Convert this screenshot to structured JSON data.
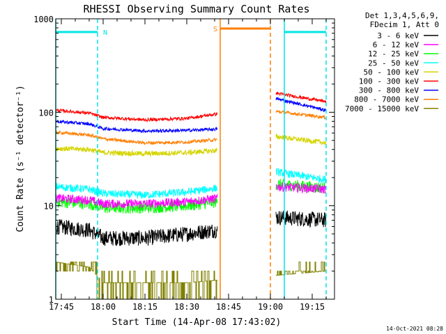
{
  "chart_data": {
    "type": "line",
    "title": "RHESSI Observing Summary Count Rates",
    "xlabel": "Start Time (14-Apr-08 17:43:02)",
    "ylabel": "Count Rate (s⁻¹ detector⁻¹)",
    "y_scale": "log",
    "ylim": [
      1,
      1000
    ],
    "xlim": [
      "17:43",
      "19:23"
    ],
    "x_ticks": [
      "17:45",
      "18:00",
      "18:15",
      "18:30",
      "18:45",
      "19:00",
      "19:15"
    ],
    "y_ticks": [
      "1",
      "10",
      "100",
      "1000"
    ],
    "legend_header": [
      "Det 1,3,4,5,6,9,",
      "FDecim 1, Att 0"
    ],
    "legend_position": "right",
    "timestamp": "14-Oct-2021 08:28",
    "flags": [
      {
        "label": "N",
        "color": "#00e5e5",
        "start": "17:43",
        "end": "17:58"
      },
      {
        "label": "",
        "color": "#00e5e5",
        "start": "19:05",
        "end": "19:20"
      },
      {
        "label": "S",
        "color": "#ff7f00",
        "start": "18:42",
        "end": "19:00"
      }
    ],
    "markers": [
      {
        "time": "17:43",
        "color": "#00e5e5",
        "style": "solid"
      },
      {
        "time": "17:58",
        "color": "#00e5e5",
        "style": "dashed"
      },
      {
        "time": "18:42",
        "color": "#ff7f00",
        "style": "solid"
      },
      {
        "time": "19:00",
        "color": "#ff7f00",
        "style": "dashed"
      },
      {
        "time": "19:05",
        "color": "#00e5e5",
        "style": "solid"
      },
      {
        "time": "19:20",
        "color": "#00e5e5",
        "style": "dashed"
      }
    ],
    "segments": [
      {
        "start": "17:43",
        "end": "18:41"
      },
      {
        "start": "19:02",
        "end": "19:20"
      }
    ],
    "series": [
      {
        "name": "3 - 6 keV",
        "color": "#000000",
        "noise": 0.12,
        "points": [
          [
            "17:43",
            6
          ],
          [
            "17:55",
            5.5
          ],
          [
            "18:00",
            4.5
          ],
          [
            "18:15",
            4.5
          ],
          [
            "18:30",
            5
          ],
          [
            "18:41",
            5.5
          ],
          [
            "19:02",
            7.5
          ],
          [
            "19:20",
            7
          ]
        ]
      },
      {
        "name": "6 - 12 keV",
        "color": "#ff00ff",
        "noise": 0.07,
        "points": [
          [
            "17:43",
            12
          ],
          [
            "17:55",
            11.5
          ],
          [
            "18:00",
            10.5
          ],
          [
            "18:15",
            10.5
          ],
          [
            "18:30",
            11
          ],
          [
            "18:41",
            12
          ],
          [
            "19:02",
            16
          ],
          [
            "19:20",
            15
          ]
        ]
      },
      {
        "name": "12 - 25 keV",
        "color": "#00ff00",
        "noise": 0.09,
        "points": [
          [
            "17:43",
            11
          ],
          [
            "17:55",
            10.5
          ],
          [
            "18:00",
            9.5
          ],
          [
            "18:15",
            9.5
          ],
          [
            "18:30",
            10
          ],
          [
            "18:41",
            11
          ],
          [
            "19:02",
            17
          ],
          [
            "19:20",
            15.5
          ]
        ]
      },
      {
        "name": "25 - 50 keV",
        "color": "#00ffff",
        "noise": 0.06,
        "points": [
          [
            "17:43",
            16
          ],
          [
            "17:55",
            15
          ],
          [
            "18:00",
            13.5
          ],
          [
            "18:15",
            13
          ],
          [
            "18:30",
            14
          ],
          [
            "18:41",
            15.5
          ],
          [
            "19:02",
            23
          ],
          [
            "19:20",
            19
          ]
        ]
      },
      {
        "name": "50 - 100 keV",
        "color": "#d4d400",
        "noise": 0.04,
        "points": [
          [
            "17:43",
            41
          ],
          [
            "17:55",
            40
          ],
          [
            "18:00",
            37
          ],
          [
            "18:15",
            36
          ],
          [
            "18:30",
            37
          ],
          [
            "18:41",
            39
          ],
          [
            "19:02",
            55
          ],
          [
            "19:20",
            47
          ]
        ]
      },
      {
        "name": "100 - 300 keV",
        "color": "#ff0000",
        "noise": 0.025,
        "points": [
          [
            "17:43",
            105
          ],
          [
            "17:55",
            98
          ],
          [
            "18:00",
            88
          ],
          [
            "18:15",
            83
          ],
          [
            "18:30",
            86
          ],
          [
            "18:41",
            96
          ],
          [
            "19:02",
            160
          ],
          [
            "19:20",
            130
          ]
        ]
      },
      {
        "name": "300 - 800 keV",
        "color": "#0000ff",
        "noise": 0.025,
        "points": [
          [
            "17:43",
            80
          ],
          [
            "17:55",
            75
          ],
          [
            "18:00",
            67
          ],
          [
            "18:15",
            63
          ],
          [
            "18:30",
            64
          ],
          [
            "18:41",
            66
          ],
          [
            "19:02",
            140
          ],
          [
            "19:20",
            105
          ]
        ]
      },
      {
        "name": "800 - 7000 keV",
        "color": "#ff7f00",
        "noise": 0.025,
        "points": [
          [
            "17:43",
            61
          ],
          [
            "17:55",
            57
          ],
          [
            "18:00",
            52
          ],
          [
            "18:15",
            47
          ],
          [
            "18:30",
            48
          ],
          [
            "18:41",
            51
          ],
          [
            "19:02",
            102
          ],
          [
            "19:20",
            88
          ]
        ]
      },
      {
        "name": "7000 - 15000 keV",
        "color": "#808000",
        "noise": 0,
        "type": "step",
        "points": [
          [
            "17:43",
            2.5
          ],
          [
            "17:55",
            2.2
          ],
          [
            "18:00",
            1.5
          ],
          [
            "18:15",
            1.5
          ],
          [
            "18:30",
            1.5
          ],
          [
            "18:41",
            1.6
          ],
          [
            "19:02",
            1.8
          ],
          [
            "19:20",
            2
          ]
        ]
      }
    ]
  }
}
